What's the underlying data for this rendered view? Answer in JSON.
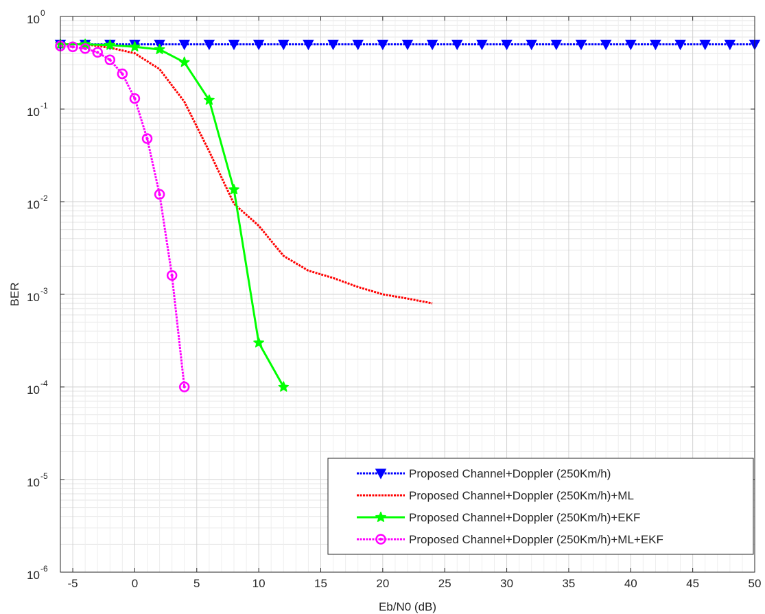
{
  "chart_data": {
    "type": "line",
    "title": "",
    "xlabel": "Eb/N0 (dB)",
    "ylabel": "BER",
    "xlim": [
      -6,
      50
    ],
    "ylim": [
      1e-06,
      1
    ],
    "yscale": "log",
    "grid": true,
    "minor_grid": true,
    "legend_position": "bottom-right",
    "x_ticks": [
      "-5",
      "0",
      "5",
      "10",
      "15",
      "20",
      "25",
      "30",
      "35",
      "40",
      "45",
      "50"
    ],
    "x_tick_values": [
      -5,
      0,
      5,
      10,
      15,
      20,
      25,
      30,
      35,
      40,
      45,
      50
    ],
    "y_ticks": [
      {
        "value": 1e-06,
        "base": "10",
        "exp": "-6"
      },
      {
        "value": 1e-05,
        "base": "10",
        "exp": "-5"
      },
      {
        "value": 0.0001,
        "base": "10",
        "exp": "-4"
      },
      {
        "value": 0.001,
        "base": "10",
        "exp": "-3"
      },
      {
        "value": 0.01,
        "base": "10",
        "exp": "-2"
      },
      {
        "value": 0.1,
        "base": "10",
        "exp": "-1"
      },
      {
        "value": 1,
        "base": "10",
        "exp": "0"
      }
    ],
    "series": [
      {
        "name": "Proposed Channel+Doppler (250Km/h)",
        "color": "#0000ff",
        "marker": "triangle-down",
        "dash": true,
        "x": [
          -6,
          -4,
          -2,
          0,
          2,
          4,
          6,
          8,
          10,
          12,
          14,
          16,
          18,
          20,
          22,
          24,
          26,
          28,
          30,
          32,
          34,
          36,
          38,
          40,
          42,
          44,
          46,
          48,
          50
        ],
        "y": [
          0.5,
          0.5,
          0.5,
          0.5,
          0.5,
          0.5,
          0.5,
          0.5,
          0.5,
          0.5,
          0.5,
          0.5,
          0.5,
          0.5,
          0.5,
          0.5,
          0.5,
          0.5,
          0.5,
          0.5,
          0.5,
          0.5,
          0.5,
          0.5,
          0.5,
          0.5,
          0.5,
          0.5,
          0.5
        ]
      },
      {
        "name": "Proposed Channel+Doppler (250Km/h)+ML",
        "color": "#ff0000",
        "marker": "none",
        "dash": true,
        "x": [
          -6,
          -4,
          -2,
          0,
          2,
          4,
          6,
          8,
          10,
          12,
          14,
          16,
          18,
          20,
          22,
          24
        ],
        "y": [
          0.5,
          0.5,
          0.46,
          0.4,
          0.27,
          0.12,
          0.035,
          0.0095,
          0.0055,
          0.0026,
          0.0018,
          0.0015,
          0.0012,
          0.001,
          0.0009,
          0.0008
        ]
      },
      {
        "name": "Proposed Channel+Doppler (250Km/h)+EKF",
        "color": "#00ff00",
        "marker": "star",
        "dash": false,
        "x": [
          -6,
          -4,
          -2,
          0,
          2,
          4,
          6,
          8,
          10,
          12
        ],
        "y": [
          0.5,
          0.5,
          0.49,
          0.47,
          0.44,
          0.32,
          0.125,
          0.0135,
          0.0003,
          0.0001
        ]
      },
      {
        "name": "Proposed Channel+Doppler (250Km/h)+ML+EKF",
        "color": "#ff00ff",
        "marker": "circle",
        "dash": true,
        "x": [
          -6,
          -5,
          -4,
          -3,
          -2,
          -1,
          0,
          1,
          2,
          3,
          4
        ],
        "y": [
          0.48,
          0.47,
          0.45,
          0.41,
          0.34,
          0.24,
          0.13,
          0.048,
          0.012,
          0.0016,
          0.0001
        ]
      }
    ]
  }
}
